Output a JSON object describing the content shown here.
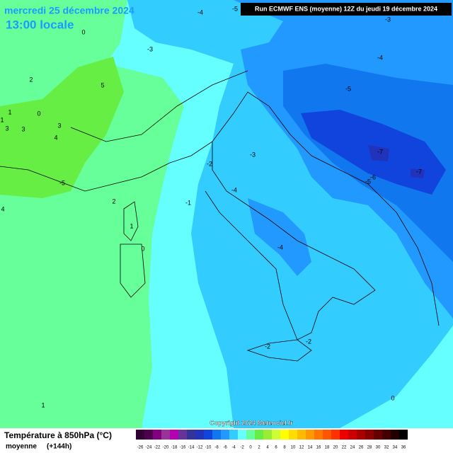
{
  "header": {
    "date": "mercredi 25 décembre 2024",
    "time": "13:00 locale",
    "run": "Run ECMWF ENS (moyenne) 12Z du jeudi 19 décembre 2024"
  },
  "copyright": "Copyright 2024 Meteociel.fr",
  "legend": {
    "title": "Température à 850hPa (°C)",
    "subtitle": "moyenne",
    "lead": "(+144h)",
    "scale": [
      -26,
      -24,
      -22,
      -20,
      -18,
      -16,
      -14,
      -12,
      -10,
      -8,
      -6,
      -4,
      -2,
      0,
      2,
      4,
      6,
      8,
      10,
      12,
      14,
      16,
      18,
      20,
      22,
      24,
      26,
      28,
      30,
      32,
      34,
      36
    ],
    "colors": [
      "#330033",
      "#4d004d",
      "#800080",
      "#993399",
      "#b300b3",
      "#663399",
      "#333399",
      "#2233bb",
      "#1144dd",
      "#1177ee",
      "#2299ff",
      "#33ccff",
      "#66ffff",
      "#66ff99",
      "#66ee44",
      "#99ee33",
      "#ccff33",
      "#ffff00",
      "#ffdd00",
      "#ffbb00",
      "#ff9900",
      "#ff7700",
      "#ff5500",
      "#ff3300",
      "#ee0000",
      "#cc0000",
      "#aa0000",
      "#880000",
      "#660000",
      "#440000",
      "#220000",
      "#000000"
    ]
  },
  "contour_labels": [
    -5,
    -4,
    -3,
    0,
    -3,
    -4,
    2,
    5,
    -5,
    1,
    0,
    1,
    3,
    3,
    3,
    4,
    -3,
    -7,
    -7,
    -2,
    -6,
    -5,
    -4,
    -1,
    2,
    4,
    1,
    0,
    -4,
    -2,
    -2,
    1,
    0,
    -5
  ]
}
